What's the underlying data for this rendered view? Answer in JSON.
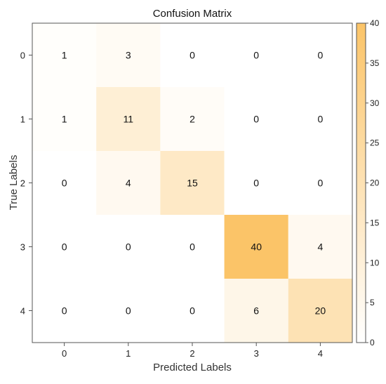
{
  "chart_data": {
    "type": "heatmap",
    "title": "Confusion Matrix",
    "xlabel": "Predicted Labels",
    "ylabel": "True Labels",
    "x_categories": [
      "0",
      "1",
      "2",
      "3",
      "4"
    ],
    "y_categories": [
      "0",
      "1",
      "2",
      "3",
      "4"
    ],
    "values": [
      [
        1,
        3,
        0,
        0,
        0
      ],
      [
        1,
        11,
        2,
        0,
        0
      ],
      [
        0,
        4,
        15,
        0,
        0
      ],
      [
        0,
        0,
        0,
        40,
        4
      ],
      [
        0,
        0,
        0,
        6,
        20
      ]
    ],
    "colorbar": {
      "range": [
        0,
        40
      ],
      "ticks": [
        0,
        5,
        10,
        15,
        20,
        25,
        30,
        35,
        40
      ],
      "low_color": "#ffffff",
      "high_color": "#fbc468"
    }
  }
}
